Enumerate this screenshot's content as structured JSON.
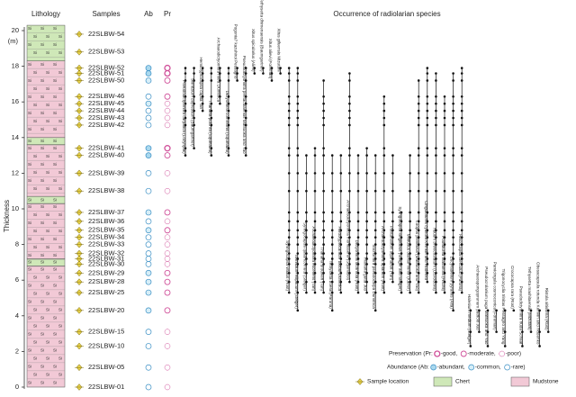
{
  "axis": {
    "title": "Thickness",
    "unit": "(m)",
    "ylim": [
      0,
      20
    ],
    "yticks": [
      0,
      2,
      4,
      6,
      8,
      10,
      12,
      14,
      16,
      18,
      20
    ]
  },
  "headers": {
    "lithology": "Lithology",
    "samples": "Samples",
    "abundance": "Ab",
    "preservation": "Pr",
    "occurrence": "Occurrence of radiolarian species"
  },
  "lithology": {
    "symbol": "Si",
    "beds": [
      {
        "type": "mudstone",
        "from": 0,
        "to": 6.8
      },
      {
        "type": "chert",
        "from": 6.8,
        "to": 7.2
      },
      {
        "type": "mudstone",
        "from": 7.2,
        "to": 10.3
      },
      {
        "type": "chert",
        "from": 10.3,
        "to": 10.7
      },
      {
        "type": "mudstone",
        "from": 10.7,
        "to": 13.6
      },
      {
        "type": "chert",
        "from": 13.6,
        "to": 14.0
      },
      {
        "type": "mudstone",
        "from": 14.0,
        "to": 18.3
      },
      {
        "type": "chert",
        "from": 18.3,
        "to": 20.3
      }
    ]
  },
  "samples": [
    {
      "name": "22SLBW-54",
      "height": 19.8,
      "ab": null,
      "pr": null
    },
    {
      "name": "22SLBW-53",
      "height": 18.8,
      "ab": null,
      "pr": null
    },
    {
      "name": "22SLBW-52",
      "height": 17.9,
      "ab": "abundant",
      "pr": "good"
    },
    {
      "name": "22SLBW-51",
      "height": 17.6,
      "ab": "abundant",
      "pr": "good"
    },
    {
      "name": "22SLBW-50",
      "height": 17.2,
      "ab": "common",
      "pr": "moderate"
    },
    {
      "name": "22SLBW-46",
      "height": 16.3,
      "ab": "rare",
      "pr": "moderate"
    },
    {
      "name": "22SLBW-45",
      "height": 15.9,
      "ab": "common",
      "pr": "poor"
    },
    {
      "name": "22SLBW-44",
      "height": 15.5,
      "ab": "rare",
      "pr": "poor"
    },
    {
      "name": "22SLBW-43",
      "height": 15.1,
      "ab": "rare",
      "pr": "poor"
    },
    {
      "name": "22SLBW-42",
      "height": 14.7,
      "ab": "rare",
      "pr": "poor"
    },
    {
      "name": "22SLBW-41",
      "height": 13.4,
      "ab": "abundant",
      "pr": "good"
    },
    {
      "name": "22SLBW-40",
      "height": 13.0,
      "ab": "abundant",
      "pr": "moderate"
    },
    {
      "name": "22SLBW-39",
      "height": 12.0,
      "ab": "rare",
      "pr": "poor"
    },
    {
      "name": "22SLBW-38",
      "height": 11.0,
      "ab": "rare",
      "pr": "poor"
    },
    {
      "name": "22SLBW-37",
      "height": 9.8,
      "ab": "common",
      "pr": "moderate"
    },
    {
      "name": "22SLBW-36",
      "height": 9.3,
      "ab": "rare",
      "pr": "poor"
    },
    {
      "name": "22SLBW-35",
      "height": 8.8,
      "ab": "common",
      "pr": "moderate"
    },
    {
      "name": "22SLBW-34",
      "height": 8.4,
      "ab": "rare",
      "pr": "poor"
    },
    {
      "name": "22SLBW-33",
      "height": 8.0,
      "ab": "rare",
      "pr": "poor"
    },
    {
      "name": "22SLBW-32",
      "height": 7.5,
      "ab": "rare",
      "pr": "poor"
    },
    {
      "name": "22SLBW-31",
      "height": 7.2,
      "ab": "rare",
      "pr": "poor"
    },
    {
      "name": "22SLBW-30",
      "height": 6.9,
      "ab": "rare",
      "pr": "poor"
    },
    {
      "name": "22SLBW-29",
      "height": 6.4,
      "ab": "common",
      "pr": "moderate"
    },
    {
      "name": "22SLBW-28",
      "height": 5.9,
      "ab": "common",
      "pr": "moderate"
    },
    {
      "name": "22SLBW-25",
      "height": 5.3,
      "ab": "common",
      "pr": "moderate"
    },
    {
      "name": "22SLBW-20",
      "height": 4.3,
      "ab": "common",
      "pr": "moderate"
    },
    {
      "name": "22SLBW-15",
      "height": 3.1,
      "ab": "rare",
      "pr": "poor"
    },
    {
      "name": "22SLBW-10",
      "height": 2.3,
      "ab": "rare",
      "pr": "poor"
    },
    {
      "name": "22SLBW-05",
      "height": 1.1,
      "ab": "rare",
      "pr": "poor"
    },
    {
      "name": "22SLBW-01",
      "height": 0,
      "ab": "rare",
      "pr": "poor"
    }
  ],
  "species": [
    {
      "name": "Pseudodictyomitra carpatica (Lozynyak)",
      "range": [
        13.0,
        17.9
      ]
    },
    {
      "name": "Svinitzium depressum (Baumgartner)",
      "range": [
        13.4,
        17.9
      ]
    },
    {
      "name": "Hemicryptocapsa capita Tan",
      "range": [
        15.5,
        17.9
      ]
    },
    {
      "name": "Thanarla pulchra (Squinabol)",
      "range": [
        13.0,
        17.9
      ]
    },
    {
      "name": "Archaeodictyomitra mitra Dumitrica",
      "range": [
        15.9,
        17.9
      ]
    },
    {
      "name": "Dictyomitra communis (Squinabol)",
      "range": [
        13.0,
        17.9
      ]
    },
    {
      "name": "Pogonia? kazuhiroi Pessagno",
      "range": [
        17.2,
        17.9
      ]
    },
    {
      "name": "Pseudodictyomitra pentacolaensis Matsuoka and Yao",
      "range": [
        13.0,
        17.9
      ]
    },
    {
      "name": "Xitus spicularius (Aliev)",
      "range": [
        17.6,
        17.9
      ]
    },
    {
      "name": "Tethysetta dhimenaensis (Baumgartner)",
      "range": [
        17.6,
        17.9
      ]
    },
    {
      "name": "Xitus alievi (Foreman)",
      "range": [
        17.2,
        17.9
      ]
    },
    {
      "name": "Xitus gifuensis Mizutani",
      "range": [
        17.6,
        17.9
      ]
    },
    {
      "name": "Syringocapsa vitiaus (Rüst)",
      "range": [
        5.3,
        17.9
      ]
    },
    {
      "name": "Svinitzium ellipticum (Steiger)",
      "range": [
        4.3,
        17.9
      ]
    },
    {
      "name": "Syringocapsa quadricornuta (Steiger)",
      "range": [
        5.3,
        13.0
      ]
    },
    {
      "name": "Archaeodictyomitra excellens (Tan)",
      "range": [
        5.3,
        13.4
      ]
    },
    {
      "name": "Thanarla brouweri (Tan)",
      "range": [
        5.3,
        17.2
      ]
    },
    {
      "name": "Tethysetta boesii (Parona)",
      "range": [
        4.3,
        13.0
      ]
    },
    {
      "name": "Holocryptocanium barbui Dumitrica",
      "range": [
        5.3,
        13.0
      ]
    },
    {
      "name": "Archaeodictyomitra montisserei (Squinabol)",
      "range": [
        5.9,
        17.6
      ]
    },
    {
      "name": "Dictyomitra lacrimula (Rüst)",
      "range": [
        5.3,
        13.0
      ]
    },
    {
      "name": "Thanarla gutta Jud",
      "range": [
        5.3,
        13.4
      ]
    },
    {
      "name": "Stichomitra pseudocarpa Dumitrica",
      "range": [
        4.3,
        13.0
      ]
    },
    {
      "name": "Archaeodictyomitra apiarium (Rüst)",
      "range": [
        5.3,
        16.3
      ]
    },
    {
      "name": "Pantanellium squinaboli (Tan)",
      "range": [
        5.9,
        13.0
      ]
    },
    {
      "name": "Syringocapsa longitubus (Steiger and Steiger)",
      "range": [
        5.3,
        9.8
      ]
    },
    {
      "name": "Mirifusus dianae minor (Karrer)",
      "range": [
        5.3,
        13.0
      ]
    },
    {
      "name": "Loopus primitivus (Matsuoka and Yao)",
      "range": [
        5.3,
        17.2
      ]
    },
    {
      "name": "Cinguloturris cylindra Kemkin and Rudenko",
      "range": [
        5.9,
        17.9
      ]
    },
    {
      "name": "Hsuum brevicostatum (Ozvoldova)",
      "range": [
        5.3,
        17.6
      ]
    },
    {
      "name": "Podobursa triacantha (Fischli)",
      "range": [
        5.3,
        16.3
      ]
    },
    {
      "name": "Eucyrtidiellum pyramis (Aita)",
      "range": [
        4.3,
        17.6
      ]
    },
    {
      "name": "Hiscocapsa uterculus (Parona)",
      "range": [
        5.3,
        17.9
      ]
    },
    {
      "name": "Halesium medium (Steiger)",
      "range": [
        2.3,
        4.3
      ]
    },
    {
      "name": "Archaeospongoprunum patricki Jud",
      "range": [
        3.1,
        4.3
      ]
    },
    {
      "name": "Pseudocrolanium puga Matsuoka and Yao",
      "range": [
        2.3,
        4.3
      ]
    },
    {
      "name": "Parvicingula cosmoconica (Foreman)",
      "range": [
        3.1,
        4.3
      ]
    },
    {
      "name": "Trigonocyclia trinitas Pessagno and Yang",
      "range": [
        2.3,
        4.3
      ]
    },
    {
      "name": "Crococapsa rara (Rüst)",
      "range": [
        4.3,
        4.3
      ]
    },
    {
      "name": "Pseudodictyomitra nuda Schaaf",
      "range": [
        2.3,
        4.3
      ]
    },
    {
      "name": "Tethysetta mashitaensis (Mizutani)",
      "range": [
        3.1,
        4.3
      ]
    },
    {
      "name": "Obesacapsula rotunda Kemkin and Rudenko",
      "range": [
        2.3,
        4.3
      ]
    },
    {
      "name": "Ristola altissima (Rüst)",
      "range": [
        3.1,
        4.3
      ]
    }
  ],
  "legend": {
    "preservation": {
      "title": "Preservation (Pr:",
      "items": [
        {
          "key": "good",
          "label": "-good,"
        },
        {
          "key": "moderate",
          "label": "-moderate,"
        },
        {
          "key": "poor",
          "label": "-poor)"
        }
      ]
    },
    "abundance": {
      "title": "Abundance (Ab:",
      "items": [
        {
          "key": "abundant",
          "label": "-abundant,"
        },
        {
          "key": "common",
          "label": "-common,"
        },
        {
          "key": "rare",
          "label": "-rare)"
        }
      ]
    },
    "sample_location": "Sample location",
    "chert": "Chert",
    "mudstone": "Mudstone"
  }
}
